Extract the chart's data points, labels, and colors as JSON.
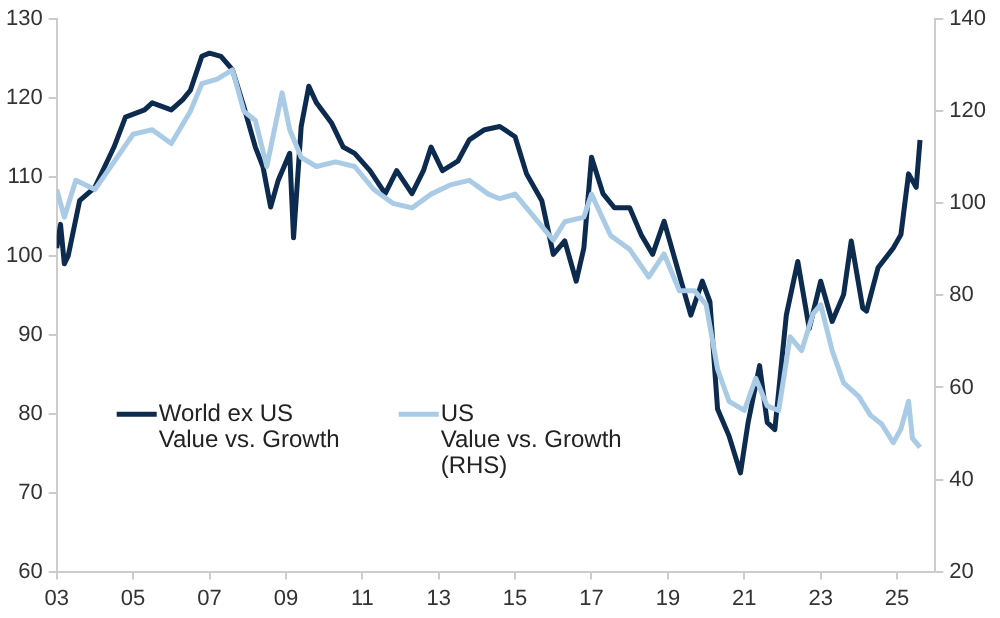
{
  "chart_data": {
    "type": "line",
    "legend": "bottom left",
    "grid": false,
    "marker": "none",
    "line_style": "solid",
    "xlim": [
      2003,
      2026
    ],
    "xticks": [
      {
        "value": 2003,
        "label": "03"
      },
      {
        "value": 2005,
        "label": "05"
      },
      {
        "value": 2007,
        "label": "07"
      },
      {
        "value": 2009,
        "label": "09"
      },
      {
        "value": 2011,
        "label": "11"
      },
      {
        "value": 2013,
        "label": "13"
      },
      {
        "value": 2015,
        "label": "15"
      },
      {
        "value": 2017,
        "label": "17"
      },
      {
        "value": 2019,
        "label": "19"
      },
      {
        "value": 2021,
        "label": "21"
      },
      {
        "value": 2023,
        "label": "23"
      },
      {
        "value": 2025,
        "label": "25"
      }
    ],
    "ylim": [
      60,
      130
    ],
    "yticks": [
      60,
      70,
      80,
      90,
      100,
      110,
      120,
      130
    ],
    "y2lim": [
      20,
      140
    ],
    "y2ticks": [
      20,
      40,
      60,
      80,
      100,
      120,
      140
    ],
    "series": [
      {
        "name": "World ex US\nValue vs. Growth",
        "color": "#0d2b4e",
        "x": [
          2003.0,
          2003.1,
          2003.2,
          2003.3,
          2003.6,
          2004.0,
          2004.5,
          2004.8,
          2005.3,
          2005.5,
          2006.0,
          2006.3,
          2006.5,
          2006.8,
          2007.0,
          2007.3,
          2007.6,
          2007.9,
          2008.2,
          2008.4,
          2008.6,
          2008.8,
          2009.1,
          2009.2,
          2009.4,
          2009.6,
          2009.8,
          2010.2,
          2010.5,
          2010.8,
          2011.2,
          2011.6,
          2011.9,
          2012.3,
          2012.6,
          2012.8,
          2013.1,
          2013.5,
          2013.8,
          2014.2,
          2014.6,
          2015.0,
          2015.3,
          2015.7,
          2016.0,
          2016.3,
          2016.6,
          2016.8,
          2017.0,
          2017.3,
          2017.6,
          2018.0,
          2018.3,
          2018.6,
          2018.9,
          2019.2,
          2019.6,
          2019.9,
          2020.1,
          2020.3,
          2020.6,
          2020.9,
          2021.1,
          2021.4,
          2021.6,
          2021.8,
          2022.1,
          2022.4,
          2022.7,
          2023.0,
          2023.3,
          2023.6,
          2023.8,
          2024.1,
          2024.2,
          2024.5,
          2024.9,
          2025.1,
          2025.3,
          2025.5,
          2025.6
        ],
        "values": [
          101,
          104,
          99,
          100,
          107,
          108.7,
          113.8,
          117.6,
          118.5,
          119.4,
          118.5,
          119.8,
          121,
          125.3,
          125.7,
          125.3,
          123.6,
          118.9,
          113.8,
          111.3,
          106.2,
          109.6,
          113,
          102.3,
          116.4,
          121.5,
          119.4,
          116.8,
          113.8,
          113,
          110.8,
          107.9,
          110.8,
          107.9,
          110.8,
          113.8,
          110.8,
          112,
          114.7,
          116,
          116.4,
          115.1,
          110.4,
          107,
          100.2,
          101.9,
          96.8,
          101,
          112.5,
          107.9,
          106.1,
          106.1,
          102.7,
          100.2,
          104.4,
          99.3,
          92.5,
          96.8,
          94.2,
          80.6,
          77.2,
          72.5,
          78.9,
          86.1,
          78.9,
          78,
          92.5,
          99.3,
          90.8,
          96.8,
          91.7,
          95.1,
          101.9,
          93.4,
          93,
          98.5,
          101,
          102.7,
          110.4,
          108.7,
          114.7
        ]
      },
      {
        "name": "US\nValue vs. Growth\n(RHS)",
        "color": "#a9cbe6",
        "axis": "y2",
        "x": [
          2003.0,
          2003.2,
          2003.5,
          2004.0,
          2004.5,
          2005.0,
          2005.5,
          2006.0,
          2006.5,
          2006.8,
          2007.2,
          2007.6,
          2007.9,
          2008.2,
          2008.5,
          2008.9,
          2009.1,
          2009.4,
          2009.8,
          2010.3,
          2010.8,
          2011.3,
          2011.8,
          2012.3,
          2012.8,
          2013.3,
          2013.8,
          2014.3,
          2014.6,
          2015.0,
          2015.5,
          2016.0,
          2016.3,
          2016.8,
          2017.0,
          2017.5,
          2018.0,
          2018.5,
          2018.9,
          2019.3,
          2019.7,
          2020.0,
          2020.3,
          2020.6,
          2021.0,
          2021.3,
          2021.6,
          2021.9,
          2022.2,
          2022.5,
          2022.8,
          2023.0,
          2023.3,
          2023.6,
          2024.0,
          2024.3,
          2024.6,
          2024.9,
          2025.1,
          2025.3,
          2025.4,
          2025.6
        ],
        "values": [
          103,
          97,
          105,
          103,
          109,
          115,
          116,
          113,
          120,
          126,
          127,
          129,
          120,
          118,
          108,
          124,
          116,
          110,
          108,
          109,
          108,
          103,
          100,
          99,
          102,
          104,
          105,
          102,
          101,
          102,
          97,
          92,
          96,
          97,
          102,
          93,
          90,
          84,
          89,
          81,
          81,
          78,
          64,
          57,
          55,
          62,
          56,
          55,
          71,
          68,
          76,
          78,
          68,
          61,
          58,
          54,
          52,
          48,
          51,
          57,
          49,
          47
        ]
      }
    ]
  }
}
